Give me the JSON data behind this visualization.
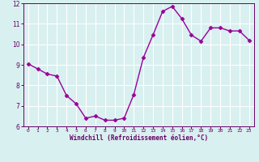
{
  "x": [
    0,
    1,
    2,
    3,
    4,
    5,
    6,
    7,
    8,
    9,
    10,
    11,
    12,
    13,
    14,
    15,
    16,
    17,
    18,
    19,
    20,
    21,
    22,
    23
  ],
  "y": [
    9.05,
    8.8,
    8.55,
    8.45,
    7.5,
    7.1,
    6.4,
    6.5,
    6.3,
    6.3,
    6.4,
    7.55,
    9.35,
    10.45,
    11.6,
    11.85,
    11.25,
    10.45,
    10.15,
    10.8,
    10.8,
    10.65,
    10.65,
    10.2
  ],
  "line_color": "#990099",
  "marker": "D",
  "marker_size": 2.5,
  "bg_color": "#d9f0f0",
  "grid_color": "#ffffff",
  "xlabel": "Windchill (Refroidissement éolien,°C)",
  "xlabel_color": "#660066",
  "tick_color": "#660066",
  "ylim": [
    6,
    12
  ],
  "xlim": [
    -0.5,
    23.5
  ],
  "yticks": [
    6,
    7,
    8,
    9,
    10,
    11,
    12
  ],
  "xticks": [
    0,
    1,
    2,
    3,
    4,
    5,
    6,
    7,
    8,
    9,
    10,
    11,
    12,
    13,
    14,
    15,
    16,
    17,
    18,
    19,
    20,
    21,
    22,
    23
  ],
  "spine_color": "#660066"
}
